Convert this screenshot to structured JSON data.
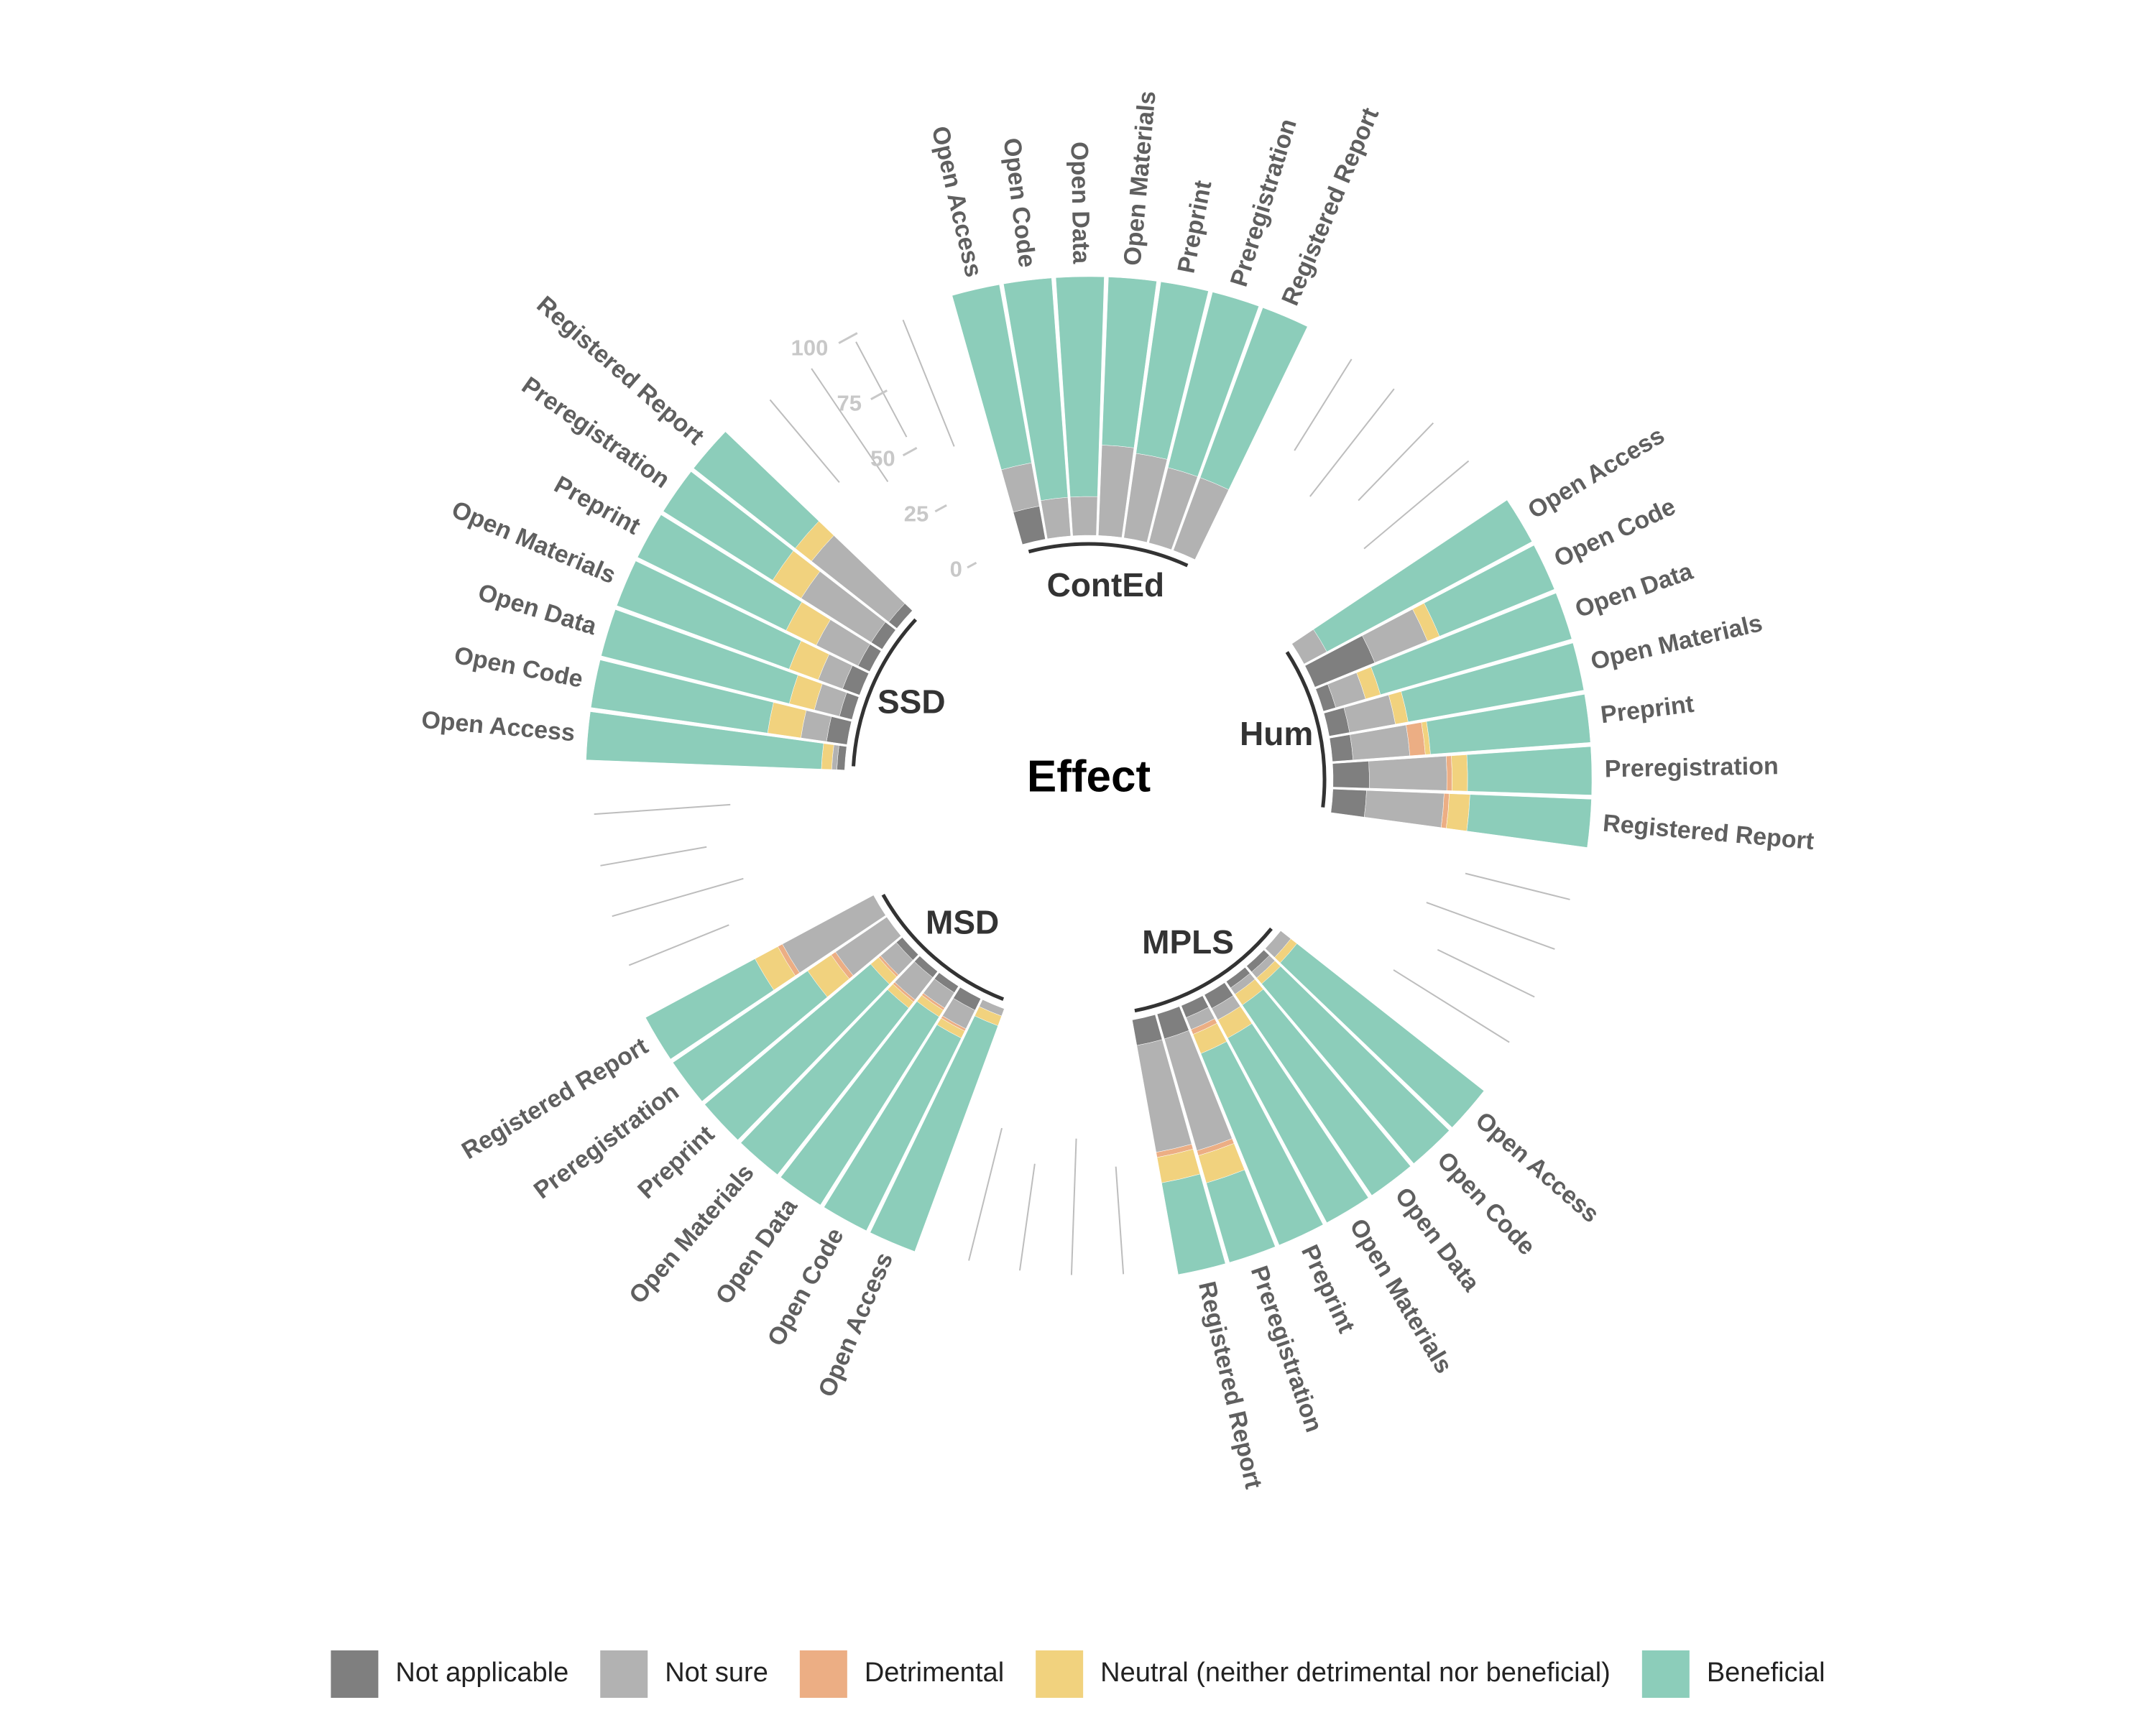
{
  "chart_data": {
    "type": "bar",
    "subtype": "circular-stacked-percent",
    "title": "Effect",
    "groups": [
      {
        "name": "ContEd",
        "categories": [
          "Open Access",
          "Open Code",
          "Open Data",
          "Open Materials",
          "Preprint",
          "Preregistration",
          "Registered Report"
        ],
        "values": {
          "Not applicable": [
            13,
            0,
            0,
            0,
            0,
            0,
            0
          ],
          "Not sure": [
            17,
            15,
            15,
            35,
            33,
            30,
            30
          ],
          "Detrimental": [
            0,
            0,
            0,
            0,
            0,
            0,
            0
          ],
          "Neutral (neither detrimental nor beneficial)": [
            0,
            0,
            0,
            0,
            0,
            0,
            0
          ],
          "Beneficial": [
            70,
            85,
            85,
            65,
            67,
            70,
            70
          ]
        }
      },
      {
        "name": "Hum",
        "categories": [
          "Open Access",
          "Open Code",
          "Open Data",
          "Open Materials",
          "Preprint",
          "Preregistration",
          "Registered Report"
        ],
        "values": {
          "Not applicable": [
            0,
            25,
            5,
            8,
            8,
            14,
            13
          ],
          "Not sure": [
            10,
            22,
            12,
            18,
            22,
            30,
            30
          ],
          "Detrimental": [
            0,
            0,
            0,
            0,
            6,
            2,
            2
          ],
          "Neutral (neither detrimental nor beneficial)": [
            0,
            5,
            6,
            5,
            2,
            6,
            8
          ],
          "Beneficial": [
            90,
            48,
            77,
            69,
            62,
            48,
            47
          ]
        }
      },
      {
        "name": "MPLS",
        "categories": [
          "Open Access",
          "Open Code",
          "Open Data",
          "Open Materials",
          "Preprint",
          "Preregistration",
          "Registered Report"
        ],
        "values": {
          "Not applicable": [
            0,
            3,
            3,
            6,
            5,
            10,
            10
          ],
          "Not sure": [
            5,
            3,
            3,
            5,
            5,
            45,
            42
          ],
          "Detrimental": [
            0,
            0,
            0,
            0,
            2,
            2,
            2
          ],
          "Neutral (neither detrimental nor beneficial)": [
            3,
            3,
            5,
            8,
            8,
            11,
            10
          ],
          "Beneficial": [
            92,
            91,
            89,
            81,
            80,
            32,
            36
          ]
        }
      },
      {
        "name": "MSD",
        "categories": [
          "Open Access",
          "Open Code",
          "Open Data",
          "Open Materials",
          "Preprint",
          "Preregistration",
          "Registered Report"
        ],
        "values": {
          "Not applicable": [
            0,
            5,
            3,
            3,
            3,
            0,
            0
          ],
          "Not sure": [
            3,
            8,
            7,
            11,
            8,
            24,
            40
          ],
          "Detrimental": [
            0,
            1,
            1,
            1,
            1,
            2,
            2
          ],
          "Neutral (neither detrimental nor beneficial)": [
            4,
            3,
            3,
            3,
            4,
            11,
            10
          ],
          "Beneficial": [
            93,
            83,
            86,
            82,
            84,
            63,
            48
          ]
        }
      },
      {
        "name": "SSD",
        "categories": [
          "Open Access",
          "Open Code",
          "Open Data",
          "Open Materials",
          "Preprint",
          "Preregistration",
          "Registered Report"
        ],
        "values": {
          "Not applicable": [
            3,
            8,
            5,
            7,
            5,
            5,
            4
          ],
          "Not sure": [
            2,
            10,
            10,
            10,
            18,
            32,
            38
          ],
          "Detrimental": [
            0,
            0,
            0,
            0,
            0,
            0,
            0
          ],
          "Neutral (neither detrimental nor beneficial)": [
            4,
            13,
            10,
            12,
            13,
            13,
            8
          ],
          "Beneficial": [
            91,
            69,
            75,
            71,
            64,
            50,
            50
          ]
        }
      }
    ],
    "legend": {
      "position": "bottom",
      "entries": [
        {
          "name": "Not applicable",
          "color": "#7f7f7f"
        },
        {
          "name": "Not sure",
          "color": "#b2b2b2"
        },
        {
          "name": "Detrimental",
          "color": "#ecae84"
        },
        {
          "name": "Neutral (neither detrimental nor beneficial)",
          "color": "#f1d27e"
        },
        {
          "name": "Beneficial",
          "color": "#8ccdba"
        }
      ]
    },
    "radial_axis": {
      "ticks": [
        0,
        25,
        50,
        75,
        100
      ],
      "range": [
        0,
        100
      ]
    },
    "grid": false
  }
}
